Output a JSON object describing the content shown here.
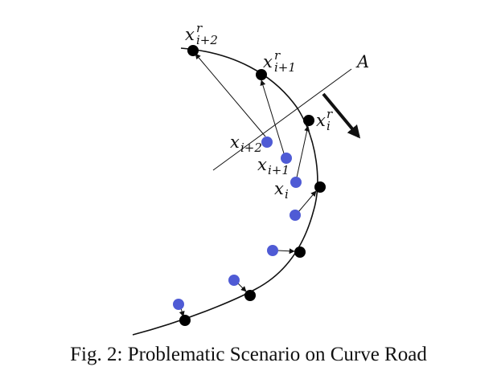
{
  "labels": {
    "xr_i2": {
      "base": "x",
      "sup": "r",
      "sub": "i+2"
    },
    "xr_i1": {
      "base": "x",
      "sup": "r",
      "sub": "i+1"
    },
    "xr_i": {
      "base": "x",
      "sup": "r",
      "sub": "i"
    },
    "x_i2": {
      "base": "x",
      "sub": "i+2"
    },
    "x_i1": {
      "base": "x",
      "sub": "i+1"
    },
    "x_i": {
      "base": "x",
      "sub": "i"
    },
    "axis_A": "A"
  },
  "caption": "Fig. 2: Problematic Scenario on Curve Road",
  "colors": {
    "road": "#111111",
    "ref_point": "#000000",
    "vehicle_point": "#4f5bd5",
    "arrow": "#111111"
  }
}
